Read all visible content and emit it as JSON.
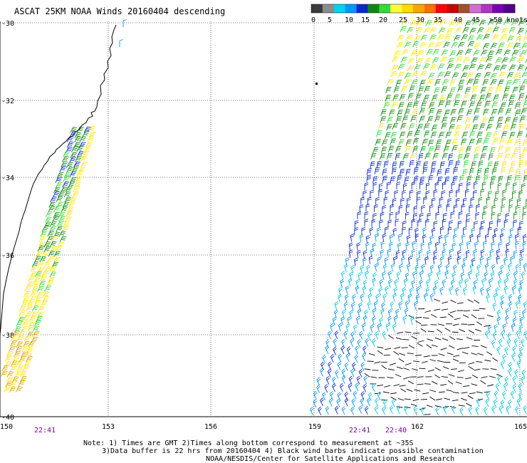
{
  "title": "ASCAT 25KM NOAA Winds 20160404 descending",
  "colorbar": {
    "labels": [
      "0",
      "5",
      "10",
      "15",
      "20",
      "25",
      "30",
      "35",
      "40",
      "45",
      ">50 knots"
    ],
    "colors": [
      "#3c3c3c",
      "#8c8c8c",
      "#00d2f5",
      "#0096ff",
      "#0a28d2",
      "#0a8c0a",
      "#32dc32",
      "#ffff32",
      "#ffdc00",
      "#ffa500",
      "#ff6e00",
      "#ff0000",
      "#c80000",
      "#a0522d",
      "#d26ed2",
      "#b432c8",
      "#7800b4",
      "#50008c"
    ]
  },
  "axes": {
    "lat_labels": [
      "-30",
      "-32",
      "-34",
      "-36",
      "-38",
      "-40"
    ],
    "lon_labels": [
      "150",
      "153",
      "156",
      "159",
      "162",
      "165"
    ]
  },
  "times": [
    "22:41",
    "22:41",
    "22:40"
  ],
  "notes": [
    "Note: 1) Times are GMT 2)Times along bottom correspond to measurement at ~35S",
    "3)Data buffer is 22 hrs from 20160404 4) Black wind barbs indicate possible contamination",
    "NOAA/NESDIS/Center for Satellite Applications and Research"
  ],
  "swath_colors": {
    "black": "#000000",
    "cyan": "#00c8e6",
    "lightblue": "#0096ff",
    "blue": "#0a28d2",
    "green": "#0a8c0a",
    "lightgreen": "#32dc32",
    "yellow": "#ffe600",
    "orange": "#e6a000"
  }
}
